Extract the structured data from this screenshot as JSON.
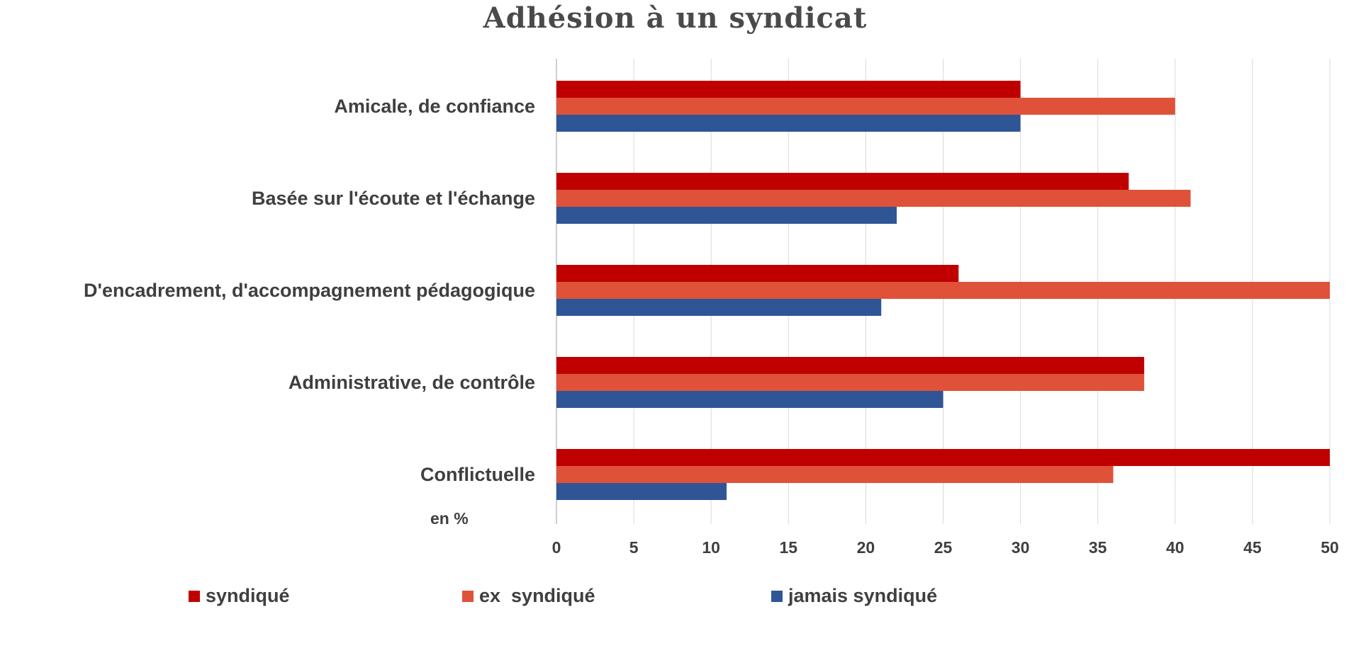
{
  "chart_data": {
    "type": "bar",
    "orientation": "horizontal",
    "title": "Adhésion à un syndicat",
    "unit_label": "en %",
    "categories": [
      "Amicale, de confiance",
      "Basée sur l'écoute et l'échange",
      "D'encadrement, d'accompagnement pédagogique",
      "Administrative, de contrôle",
      "Conflictuelle"
    ],
    "series": [
      {
        "name": "syndiqué",
        "color": "#c00000",
        "values": [
          30,
          37,
          26,
          38,
          50
        ]
      },
      {
        "name": "ex  syndiqué",
        "color": "#e0513a",
        "values": [
          40,
          41,
          50,
          38,
          36
        ]
      },
      {
        "name": "jamais syndiqué",
        "color": "#2f5597",
        "values": [
          30,
          22,
          21,
          25,
          11
        ]
      }
    ],
    "xlim": [
      0,
      50
    ],
    "xticks": [
      0,
      5,
      10,
      15,
      20,
      25,
      30,
      35,
      40,
      45,
      50
    ],
    "grid": true,
    "legend_position": "bottom"
  }
}
